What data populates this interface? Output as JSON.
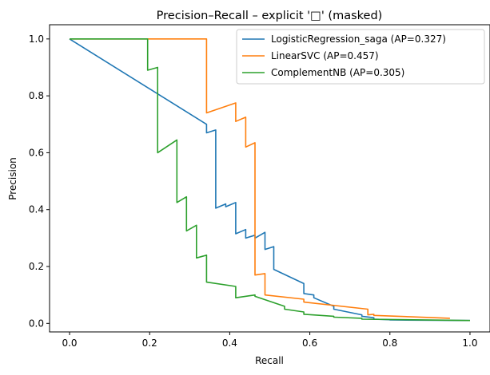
{
  "chart_data": {
    "type": "line",
    "title": "Precision–Recall – explicit '□' (masked)",
    "xlabel": "Recall",
    "ylabel": "Precision",
    "xlim": [
      -0.05,
      1.05
    ],
    "ylim": [
      -0.03,
      1.05
    ],
    "xticks": [
      "0.0",
      "0.2",
      "0.4",
      "0.6",
      "0.8",
      "1.0"
    ],
    "yticks": [
      "0.0",
      "0.2",
      "0.4",
      "0.6",
      "0.8",
      "1.0"
    ],
    "grid": false,
    "legend_position": "top-right",
    "series": [
      {
        "name": "LogisticRegression_saga (AP=0.327)",
        "color": "#1f77b4",
        "x": [
          0.0,
          0.342,
          0.342,
          0.365,
          0.365,
          0.39,
          0.39,
          0.415,
          0.415,
          0.44,
          0.44,
          0.463,
          0.463,
          0.488,
          0.488,
          0.51,
          0.51,
          0.585,
          0.585,
          0.61,
          0.61,
          0.66,
          0.66,
          0.73,
          0.73,
          0.76,
          0.76,
          0.8,
          0.8,
          1.0
        ],
        "y": [
          1.0,
          0.7,
          0.67,
          0.68,
          0.405,
          0.42,
          0.41,
          0.425,
          0.315,
          0.33,
          0.3,
          0.31,
          0.3,
          0.32,
          0.26,
          0.27,
          0.19,
          0.14,
          0.105,
          0.1,
          0.09,
          0.06,
          0.05,
          0.03,
          0.025,
          0.02,
          0.015,
          0.013,
          0.012,
          0.01
        ]
      },
      {
        "name": "LinearSVC (AP=0.457)",
        "color": "#ff7f0e",
        "x": [
          0.0,
          0.342,
          0.342,
          0.415,
          0.415,
          0.44,
          0.44,
          0.463,
          0.463,
          0.488,
          0.488,
          0.585,
          0.585,
          0.745,
          0.745,
          0.76,
          0.76,
          0.95
        ],
        "y": [
          1.0,
          1.0,
          0.74,
          0.775,
          0.71,
          0.725,
          0.62,
          0.635,
          0.17,
          0.175,
          0.1,
          0.085,
          0.075,
          0.05,
          0.03,
          0.032,
          0.028,
          0.018
        ]
      },
      {
        "name": "ComplementNB (AP=0.305)",
        "color": "#2ca02c",
        "x": [
          0.0,
          0.195,
          0.195,
          0.22,
          0.22,
          0.268,
          0.268,
          0.292,
          0.292,
          0.317,
          0.317,
          0.342,
          0.342,
          0.415,
          0.415,
          0.463,
          0.463,
          0.537,
          0.537,
          0.585,
          0.585,
          0.66,
          0.66,
          0.73,
          0.73,
          1.0
        ],
        "y": [
          1.0,
          1.0,
          0.89,
          0.9,
          0.6,
          0.645,
          0.425,
          0.445,
          0.325,
          0.345,
          0.23,
          0.24,
          0.145,
          0.13,
          0.09,
          0.1,
          0.095,
          0.06,
          0.05,
          0.04,
          0.032,
          0.025,
          0.022,
          0.018,
          0.015,
          0.01
        ]
      }
    ]
  }
}
